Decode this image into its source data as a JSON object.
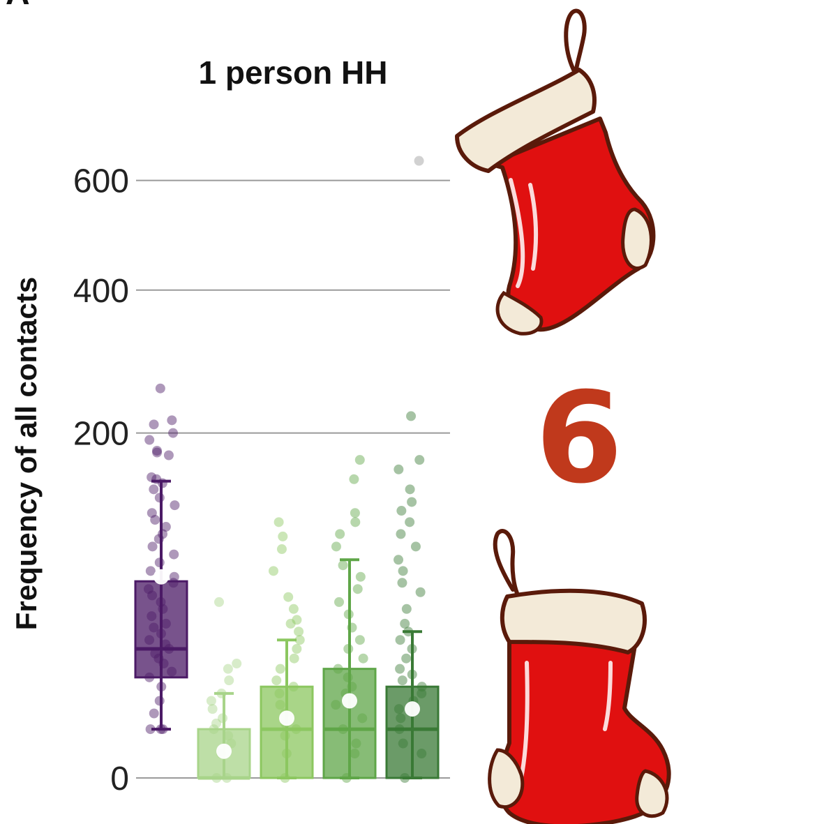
{
  "panel_letter": "A",
  "big_number": "6",
  "colors": {
    "number": "#c0391c",
    "stocking_red": "#e01010",
    "stocking_cuff": "#f3ead8",
    "outline": "#5a1a0a"
  },
  "chart_data": {
    "type": "box",
    "title": "1 person HH",
    "ylabel": "Frequency of all contacts",
    "yscale": "sqrt",
    "ylim": [
      0,
      700
    ],
    "yticks": [
      0,
      200,
      400,
      600
    ],
    "ytick_labels": [
      "0",
      "200",
      "400",
      "600"
    ],
    "grid": true,
    "boxes": [
      {
        "color": "#4b1a66",
        "q1": 17,
        "median": 28,
        "q3": 65,
        "whisker_low": 4,
        "whisker_high": 148,
        "mean": 68,
        "outliers": [
          150,
          152,
          175,
          178,
          180,
          192,
          200,
          210,
          215,
          255
        ],
        "points": [
          4,
          4,
          4,
          7,
          10,
          14,
          17,
          19,
          22,
          24,
          26,
          28,
          30,
          32,
          35,
          38,
          40,
          44,
          48,
          52,
          56,
          60,
          64,
          68,
          72,
          78,
          84,
          90,
          96,
          100,
          106,
          112,
          118,
          125,
          132,
          140,
          146
        ]
      },
      {
        "color": "#a8d48a",
        "q1": 0,
        "median": 0,
        "q3": 4,
        "whisker_low": 0,
        "whisker_high": 12,
        "mean": 1.2,
        "outliers": [
          22,
          52
        ],
        "points": [
          0,
          0,
          1,
          2,
          3,
          4,
          5,
          6,
          8,
          10,
          12,
          16,
          20
        ]
      },
      {
        "color": "#8cc760",
        "q1": 0,
        "median": 4,
        "q3": 14,
        "whisker_low": 0,
        "whisker_high": 32,
        "mean": 6,
        "outliers": [
          40,
          55,
          72,
          88,
          98,
          110
        ],
        "points": [
          0,
          1,
          3,
          4,
          5,
          7,
          9,
          12,
          14,
          16,
          20,
          24,
          28,
          32,
          36,
          42,
          48
        ]
      },
      {
        "color": "#5fa648",
        "q1": 0,
        "median": 4,
        "q3": 20,
        "whisker_low": 0,
        "whisker_high": 80,
        "mean": 10,
        "outliers": [
          90,
          100,
          110,
          118,
          150,
          170
        ],
        "points": [
          0,
          1,
          2,
          4,
          6,
          9,
          12,
          14,
          17,
          20,
          24,
          28,
          32,
          38,
          45,
          52,
          60,
          68,
          76
        ]
      },
      {
        "color": "#3a7a36",
        "q1": 0,
        "median": 4,
        "q3": 14,
        "whisker_low": 0,
        "whisker_high": 36,
        "mean": 8,
        "outliers": [
          40,
          48,
          58,
          64,
          72,
          80,
          90,
          100,
          110,
          120,
          128,
          140,
          160,
          170,
          220,
          640
        ],
        "points": [
          0,
          1,
          2,
          4,
          6,
          8,
          10,
          12,
          14,
          16,
          18,
          20,
          24,
          28,
          32,
          36
        ]
      }
    ]
  }
}
